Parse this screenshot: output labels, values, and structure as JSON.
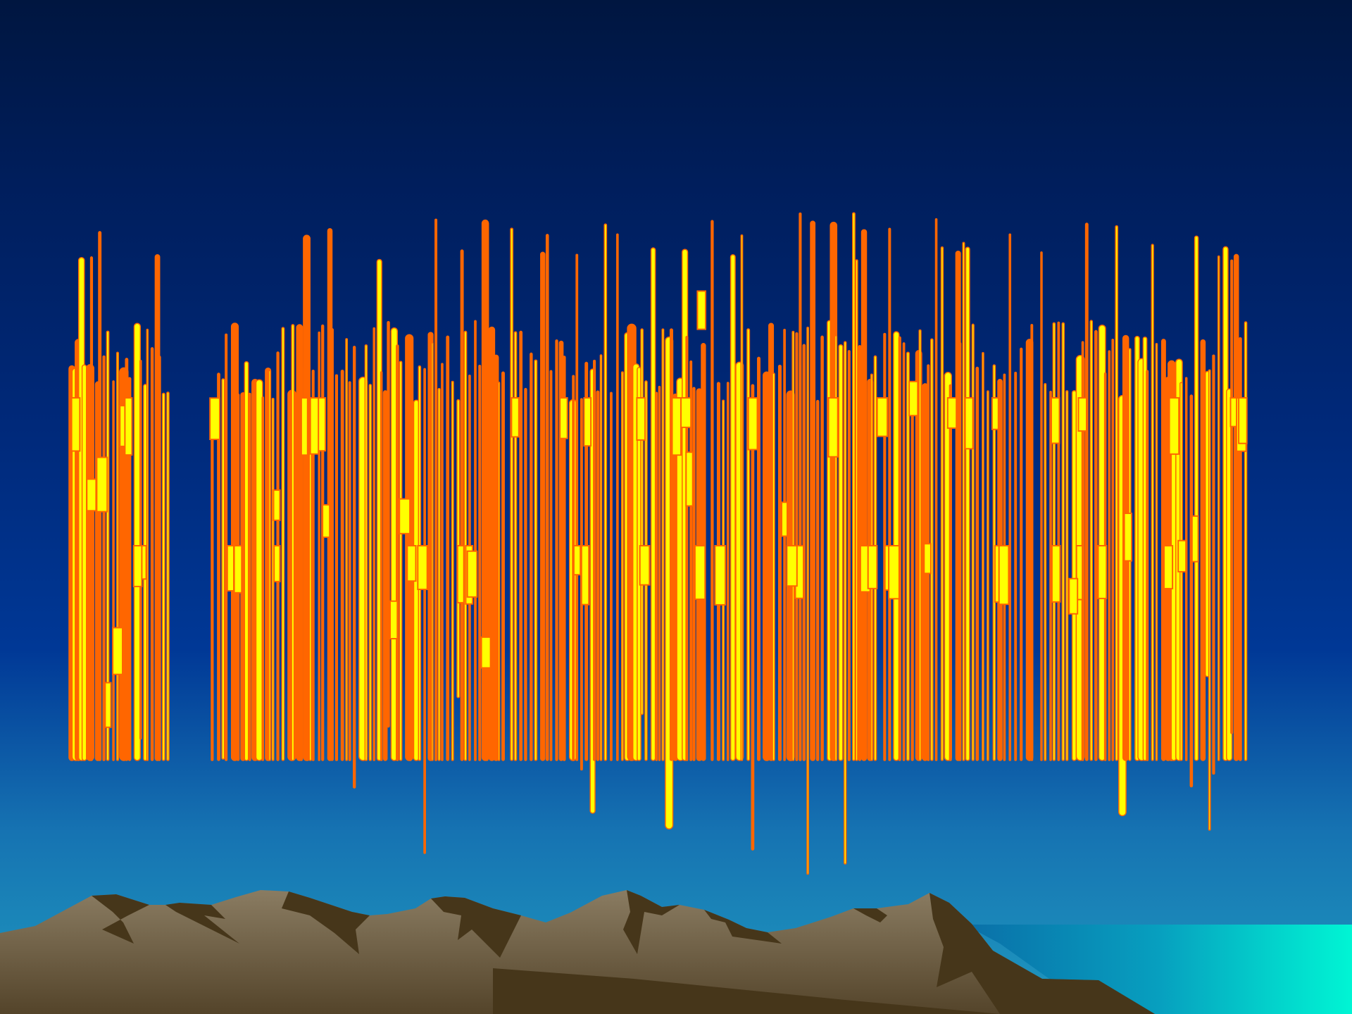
{
  "slide": {
    "title": "",
    "title_style": "stretched-wordart",
    "colors": {
      "sky_top": "#001640",
      "sky_mid": "#00297a",
      "sky_bottom": "#1f99bf",
      "sea": "#00f5d4",
      "mountain_light": "#87795f",
      "mountain_dark": "#46361a",
      "title_fill": "#ffff00",
      "title_outline": "#ff6600"
    }
  }
}
